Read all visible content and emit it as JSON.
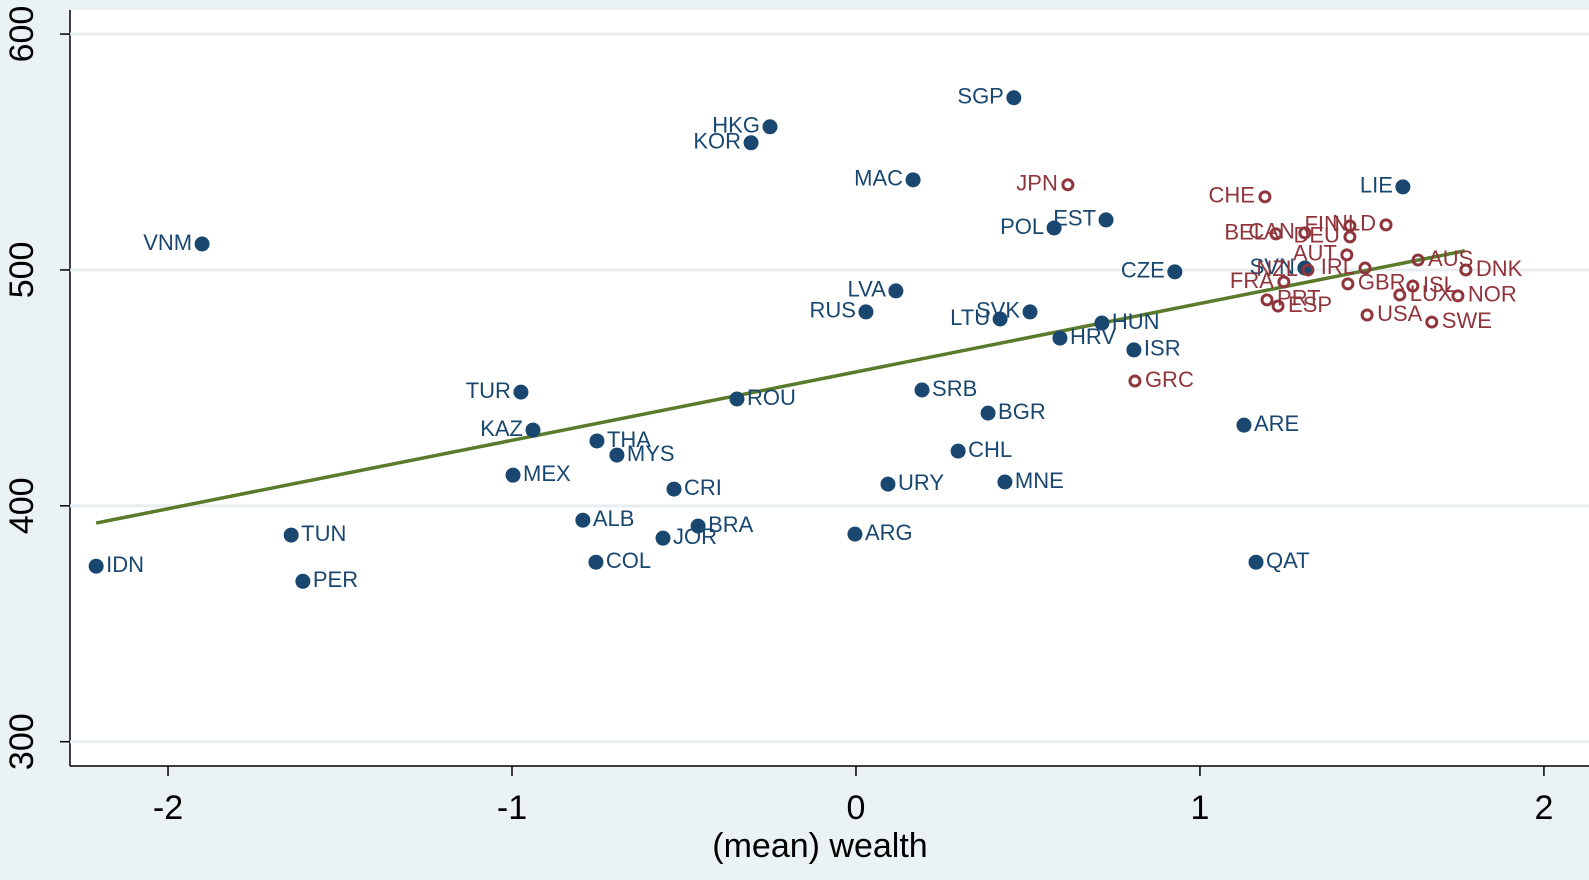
{
  "chart_data": {
    "type": "scatter",
    "x_label": "(mean) wealth",
    "xlim": [
      -2.285,
      2.07
    ],
    "ylim": [
      289.7,
      610.2
    ],
    "xticks": [
      -2,
      -1,
      0,
      1,
      2
    ],
    "yticks": [
      300,
      400,
      500,
      600
    ],
    "grid": true,
    "fit_line": {
      "color": "#5a7a2c",
      "x": [
        -2.209,
        1.77
      ],
      "y": [
        392.7,
        508.1
      ]
    },
    "series": [
      {
        "color": "#1a476f",
        "marker": "filled",
        "points": [
          {
            "label": "IDN",
            "x": -2.209,
            "y": 374.4,
            "side": "right"
          },
          {
            "label": "VNM",
            "x": -1.901,
            "y": 511.0,
            "side": "left"
          },
          {
            "label": "TUN",
            "x": -1.642,
            "y": 387.6,
            "side": "right"
          },
          {
            "label": "PER",
            "x": -1.608,
            "y": 368.0,
            "side": "right"
          },
          {
            "label": "TUR",
            "x": -0.974,
            "y": 448.2,
            "side": "left"
          },
          {
            "label": "KAZ",
            "x": -0.939,
            "y": 432.1,
            "side": "left"
          },
          {
            "label": "MEX",
            "x": -0.997,
            "y": 413.0,
            "side": "right"
          },
          {
            "label": "ALB",
            "x": -0.794,
            "y": 393.9,
            "side": "right"
          },
          {
            "label": "COL",
            "x": -0.756,
            "y": 376.1,
            "side": "right"
          },
          {
            "label": "THA",
            "x": -0.753,
            "y": 427.5,
            "side": "right"
          },
          {
            "label": "MYS",
            "x": -0.695,
            "y": 421.5,
            "side": "right"
          },
          {
            "label": "CRI",
            "x": -0.529,
            "y": 407.1,
            "side": "right"
          },
          {
            "label": "JOR",
            "x": -0.561,
            "y": 386.3,
            "side": "right"
          },
          {
            "label": "BRA",
            "x": -0.459,
            "y": 391.4,
            "side": "right"
          },
          {
            "label": "ROU",
            "x": -0.346,
            "y": 445.3,
            "side": "right"
          },
          {
            "label": "HKG",
            "x": -0.25,
            "y": 560.7,
            "side": "left"
          },
          {
            "label": "KOR",
            "x": -0.305,
            "y": 553.9,
            "side": "left"
          },
          {
            "label": "ARG",
            "x": -0.003,
            "y": 388.0,
            "side": "right"
          },
          {
            "label": "URY",
            "x": 0.093,
            "y": 409.2,
            "side": "right"
          },
          {
            "label": "RUS",
            "x": 0.029,
            "y": 482.2,
            "side": "left"
          },
          {
            "label": "LVA",
            "x": 0.116,
            "y": 491.1,
            "side": "left"
          },
          {
            "label": "MAC",
            "x": 0.166,
            "y": 538.2,
            "side": "left"
          },
          {
            "label": "SRB",
            "x": 0.192,
            "y": 449.1,
            "side": "right"
          },
          {
            "label": "CHL",
            "x": 0.297,
            "y": 423.2,
            "side": "right"
          },
          {
            "label": "BGR",
            "x": 0.384,
            "y": 439.3,
            "side": "right"
          },
          {
            "label": "MNE",
            "x": 0.433,
            "y": 410.1,
            "side": "right"
          },
          {
            "label": "LTU",
            "x": 0.419,
            "y": 479.2,
            "side": "left"
          },
          {
            "label": "SVK",
            "x": 0.506,
            "y": 482.2,
            "side": "left"
          },
          {
            "label": "SGP",
            "x": 0.459,
            "y": 573.0,
            "side": "left"
          },
          {
            "label": "POL",
            "x": 0.576,
            "y": 517.8,
            "side": "left"
          },
          {
            "label": "EST",
            "x": 0.727,
            "y": 521.2,
            "side": "left"
          },
          {
            "label": "HRV",
            "x": 0.593,
            "y": 471.1,
            "side": "right"
          },
          {
            "label": "HUN",
            "x": 0.715,
            "y": 477.5,
            "side": "right"
          },
          {
            "label": "ISR",
            "x": 0.808,
            "y": 466.1,
            "side": "right"
          },
          {
            "label": "CZE",
            "x": 0.927,
            "y": 499.2,
            "side": "left"
          },
          {
            "label": "SVN",
            "x": 1.305,
            "y": 500.8,
            "side": "left"
          },
          {
            "label": "ARE",
            "x": 1.128,
            "y": 434.2,
            "side": "right"
          },
          {
            "label": "QAT",
            "x": 1.163,
            "y": 376.1,
            "side": "right"
          },
          {
            "label": "LIE",
            "x": 1.59,
            "y": 535.2,
            "side": "left"
          }
        ]
      },
      {
        "color": "#90353b",
        "marker": "hollow",
        "points": [
          {
            "label": "JPN",
            "x": 0.616,
            "y": 536.1,
            "side": "left"
          },
          {
            "label": "GRC",
            "x": 0.811,
            "y": 452.9,
            "side": "right"
          },
          {
            "label": "CHE",
            "x": 1.189,
            "y": 531.0,
            "side": "left"
          },
          {
            "label": "CAN",
            "x": 1.305,
            "y": 515.7,
            "side": "left"
          },
          {
            "label": "FIN",
            "x": 1.436,
            "y": 518.7,
            "side": "left"
          },
          {
            "label": "NLD",
            "x": 1.541,
            "y": 519.1,
            "side": "left"
          },
          {
            "label": "BEL",
            "x": 1.221,
            "y": 515.3,
            "side": "left"
          },
          {
            "label": "DEU",
            "x": 1.436,
            "y": 514.0,
            "side": "left"
          },
          {
            "label": "AUT",
            "x": 1.427,
            "y": 506.4,
            "side": "left"
          },
          {
            "label": "NZL",
            "x": 1.314,
            "y": 500.0,
            "side": "left"
          },
          {
            "label": "IRL",
            "x": 1.48,
            "y": 500.8,
            "side": "left"
          },
          {
            "label": "AUS",
            "x": 1.634,
            "y": 504.2,
            "side": "right"
          },
          {
            "label": "DNK",
            "x": 1.773,
            "y": 500.0,
            "side": "right"
          },
          {
            "label": "FRA",
            "x": 1.244,
            "y": 494.9,
            "side": "left"
          },
          {
            "label": "GBR",
            "x": 1.43,
            "y": 494.1,
            "side": "right"
          },
          {
            "label": "ISL",
            "x": 1.619,
            "y": 493.2,
            "side": "right"
          },
          {
            "label": "LUX",
            "x": 1.581,
            "y": 489.4,
            "side": "right"
          },
          {
            "label": "NOR",
            "x": 1.75,
            "y": 489.0,
            "side": "right"
          },
          {
            "label": "PRT",
            "x": 1.195,
            "y": 487.3,
            "side": "right"
          },
          {
            "label": "ESP",
            "x": 1.227,
            "y": 484.7,
            "side": "right"
          },
          {
            "label": "USA",
            "x": 1.486,
            "y": 480.9,
            "side": "right"
          },
          {
            "label": "SWE",
            "x": 1.674,
            "y": 477.9,
            "side": "right"
          }
        ]
      }
    ]
  }
}
